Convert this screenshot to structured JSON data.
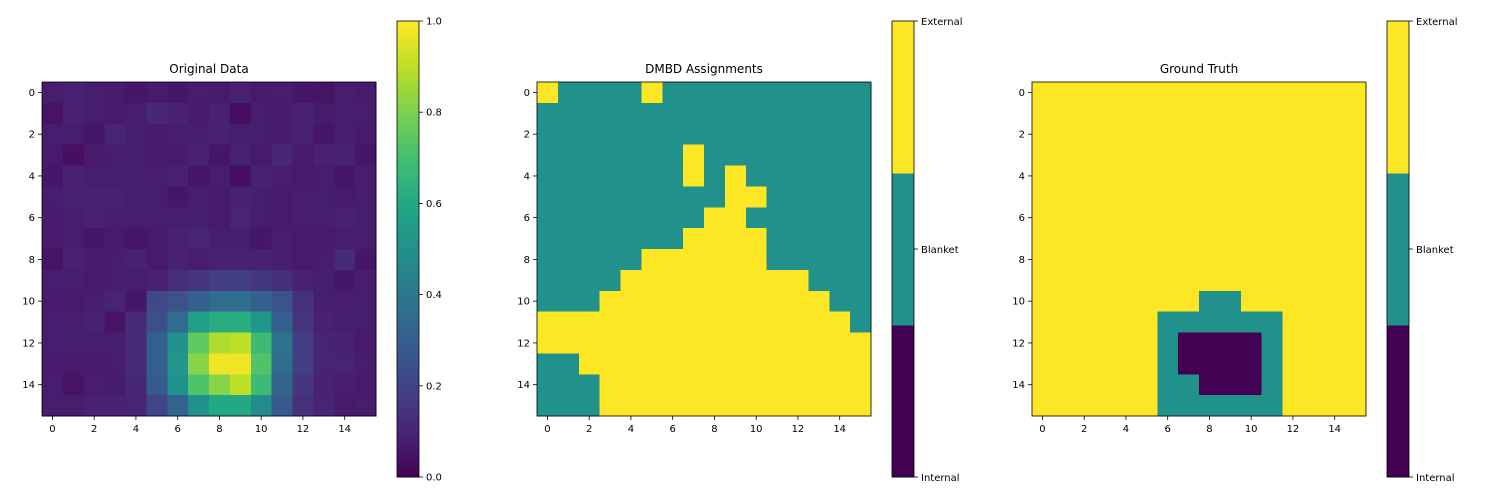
{
  "chart_data": [
    {
      "type": "heatmap",
      "title": "Original Data",
      "grid_size": [
        16,
        16
      ],
      "xticks": [
        "0",
        "2",
        "4",
        "6",
        "8",
        "10",
        "12",
        "14"
      ],
      "yticks": [
        "0",
        "2",
        "4",
        "6",
        "8",
        "10",
        "12",
        "14"
      ],
      "colormap": "viridis",
      "colorbar": {
        "type": "continuous",
        "min": 0.0,
        "max": 1.0,
        "ticks": [
          "0.0",
          "0.2",
          "0.4",
          "0.6",
          "0.8",
          "1.0"
        ]
      },
      "values": [
        [
          0.08,
          0.09,
          0.08,
          0.07,
          0.06,
          0.07,
          0.06,
          0.08,
          0.07,
          0.09,
          0.07,
          0.08,
          0.06,
          0.05,
          0.08,
          0.07
        ],
        [
          0.05,
          0.09,
          0.08,
          0.07,
          0.08,
          0.11,
          0.09,
          0.07,
          0.09,
          0.04,
          0.08,
          0.07,
          0.09,
          0.07,
          0.08,
          0.08
        ],
        [
          0.08,
          0.08,
          0.06,
          0.1,
          0.08,
          0.07,
          0.08,
          0.08,
          0.09,
          0.08,
          0.08,
          0.07,
          0.09,
          0.06,
          0.08,
          0.07
        ],
        [
          0.07,
          0.04,
          0.07,
          0.08,
          0.08,
          0.07,
          0.07,
          0.09,
          0.06,
          0.09,
          0.07,
          0.11,
          0.07,
          0.09,
          0.09,
          0.06
        ],
        [
          0.06,
          0.09,
          0.08,
          0.08,
          0.08,
          0.08,
          0.09,
          0.06,
          0.08,
          0.04,
          0.09,
          0.08,
          0.07,
          0.08,
          0.06,
          0.08
        ],
        [
          0.08,
          0.09,
          0.09,
          0.09,
          0.08,
          0.08,
          0.06,
          0.08,
          0.07,
          0.09,
          0.08,
          0.07,
          0.08,
          0.08,
          0.07,
          0.08
        ],
        [
          0.07,
          0.08,
          0.09,
          0.08,
          0.08,
          0.08,
          0.08,
          0.08,
          0.07,
          0.1,
          0.08,
          0.07,
          0.08,
          0.08,
          0.09,
          0.08
        ],
        [
          0.07,
          0.08,
          0.06,
          0.07,
          0.06,
          0.07,
          0.09,
          0.1,
          0.08,
          0.08,
          0.06,
          0.08,
          0.07,
          0.07,
          0.08,
          0.08
        ],
        [
          0.05,
          0.09,
          0.07,
          0.08,
          0.09,
          0.07,
          0.09,
          0.08,
          0.09,
          0.09,
          0.09,
          0.08,
          0.07,
          0.08,
          0.12,
          0.06
        ],
        [
          0.08,
          0.08,
          0.07,
          0.08,
          0.08,
          0.09,
          0.13,
          0.15,
          0.18,
          0.18,
          0.16,
          0.13,
          0.09,
          0.08,
          0.06,
          0.08
        ],
        [
          0.07,
          0.07,
          0.08,
          0.1,
          0.06,
          0.22,
          0.25,
          0.3,
          0.35,
          0.35,
          0.3,
          0.25,
          0.14,
          0.08,
          0.08,
          0.08
        ],
        [
          0.08,
          0.08,
          0.09,
          0.05,
          0.12,
          0.24,
          0.35,
          0.55,
          0.62,
          0.62,
          0.52,
          0.3,
          0.15,
          0.09,
          0.08,
          0.08
        ],
        [
          0.08,
          0.08,
          0.08,
          0.08,
          0.12,
          0.3,
          0.5,
          0.75,
          0.88,
          0.9,
          0.68,
          0.38,
          0.18,
          0.1,
          0.09,
          0.07
        ],
        [
          0.07,
          0.07,
          0.07,
          0.08,
          0.12,
          0.3,
          0.52,
          0.82,
          0.98,
          0.98,
          0.72,
          0.35,
          0.18,
          0.1,
          0.1,
          0.08
        ],
        [
          0.08,
          0.05,
          0.08,
          0.07,
          0.11,
          0.28,
          0.5,
          0.72,
          0.82,
          0.9,
          0.68,
          0.32,
          0.16,
          0.09,
          0.08,
          0.07
        ],
        [
          0.08,
          0.08,
          0.09,
          0.09,
          0.1,
          0.2,
          0.32,
          0.5,
          0.6,
          0.6,
          0.48,
          0.28,
          0.14,
          0.1,
          0.07,
          0.08
        ]
      ]
    },
    {
      "type": "heatmap",
      "title": "DMBD Assignments",
      "grid_size": [
        16,
        16
      ],
      "xticks": [
        "0",
        "2",
        "4",
        "6",
        "8",
        "10",
        "12",
        "14"
      ],
      "yticks": [
        "0",
        "2",
        "4",
        "6",
        "8",
        "10",
        "12",
        "14"
      ],
      "colorbar": {
        "type": "categorical",
        "labels": [
          "Internal",
          "Blanket",
          "External"
        ],
        "colors": [
          "#440154",
          "#21918c",
          "#fde725"
        ]
      },
      "rows": [
        "2111121111111111",
        "1111111111111111",
        "1111111111111111",
        "1111111211111111",
        "1111111212111111",
        "1111111112211111",
        "1111111122111111",
        "1111111222211111",
        "1111122222211111",
        "1111222222222111",
        "1112222222222211",
        "2222222222222221",
        "2222222222222222",
        "1122222222222222",
        "1112222222222222",
        "1112222222222222"
      ]
    },
    {
      "type": "heatmap",
      "title": "Ground Truth",
      "grid_size": [
        16,
        16
      ],
      "xticks": [
        "0",
        "2",
        "4",
        "6",
        "8",
        "10",
        "12",
        "14"
      ],
      "yticks": [
        "0",
        "2",
        "4",
        "6",
        "8",
        "10",
        "12",
        "14"
      ],
      "colorbar": {
        "type": "categorical",
        "labels": [
          "Internal",
          "Blanket",
          "External"
        ],
        "colors": [
          "#440154",
          "#21918c",
          "#fde725"
        ]
      },
      "rows": [
        "2222222222222222",
        "2222222222222222",
        "2222222222222222",
        "2222222222222222",
        "2222222222222222",
        "2222222222222222",
        "2222222222222222",
        "2222222222222222",
        "2222222222222222",
        "2222222222222222",
        "2222222211222222",
        "2222221111112222",
        "2222221000012222",
        "2222221000012222",
        "2222221100012222",
        "2222221111112222"
      ]
    }
  ]
}
